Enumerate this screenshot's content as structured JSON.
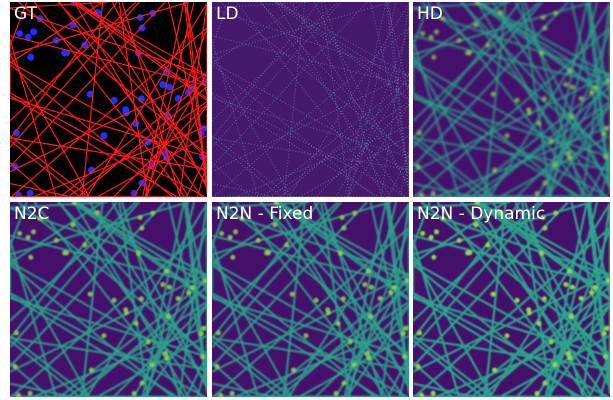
{
  "panels": [
    {
      "label": "GT"
    },
    {
      "label": "LD"
    },
    {
      "label": "HD"
    },
    {
      "label": "N2C"
    },
    {
      "label": "N2N - Fixed"
    },
    {
      "label": "N2N - Dynamic"
    }
  ]
}
